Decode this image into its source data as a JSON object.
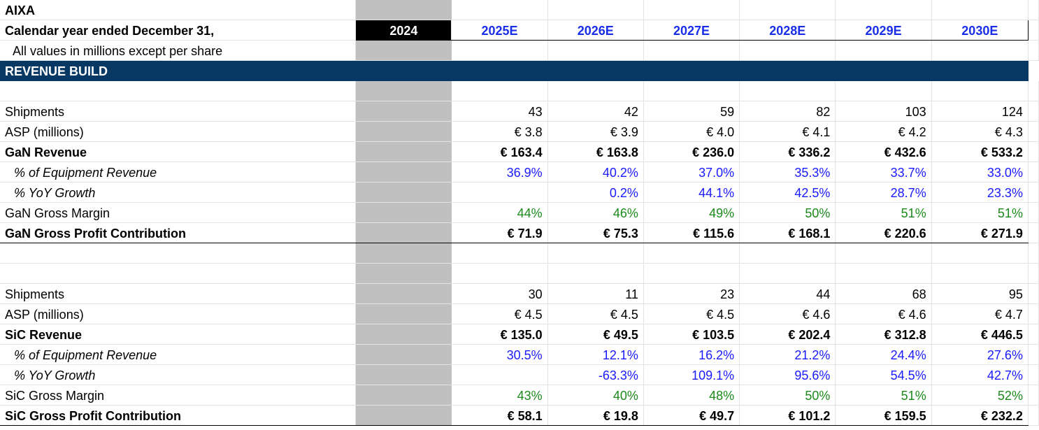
{
  "sheet": {
    "ticker": "AIXA",
    "period_label": "Calendar year ended December 31,",
    "units_note": "All values in millions except per share",
    "section_title": "REVENUE BUILD",
    "years": [
      "2024",
      "2025E",
      "2026E",
      "2027E",
      "2028E",
      "2029E",
      "2030E"
    ]
  },
  "gan": {
    "shipments": {
      "label": "Shipments",
      "values": [
        "",
        "43",
        "42",
        "59",
        "82",
        "103",
        "124"
      ]
    },
    "asp": {
      "label": "ASP (millions)",
      "values": [
        "",
        "€ 3.8",
        "€ 3.9",
        "€ 4.0",
        "€ 4.1",
        "€ 4.2",
        "€ 4.3"
      ]
    },
    "revenue": {
      "label": "GaN Revenue",
      "values": [
        "",
        "€ 163.4",
        "€ 163.8",
        "€ 236.0",
        "€ 336.2",
        "€ 432.6",
        "€ 533.2"
      ]
    },
    "pct_equipment": {
      "label": "% of Equipment Revenue",
      "values": [
        "",
        "36.9%",
        "40.2%",
        "37.0%",
        "35.3%",
        "33.7%",
        "33.0%"
      ]
    },
    "yoy": {
      "label": "% YoY Growth",
      "values": [
        "",
        "",
        "0.2%",
        "44.1%",
        "42.5%",
        "28.7%",
        "23.3%"
      ]
    },
    "gross_margin": {
      "label": "GaN Gross Margin",
      "values": [
        "",
        "44%",
        "46%",
        "49%",
        "50%",
        "51%",
        "51%"
      ]
    },
    "gross_profit": {
      "label": "GaN Gross Profit Contribution",
      "values": [
        "",
        "€ 71.9",
        "€ 75.3",
        "€ 115.6",
        "€ 168.1",
        "€ 220.6",
        "€ 271.9"
      ]
    }
  },
  "sic": {
    "shipments": {
      "label": "Shipments",
      "values": [
        "",
        "30",
        "11",
        "23",
        "44",
        "68",
        "95"
      ]
    },
    "asp": {
      "label": "ASP (millions)",
      "values": [
        "",
        "€ 4.5",
        "€ 4.5",
        "€ 4.5",
        "€ 4.6",
        "€ 4.6",
        "€ 4.7"
      ]
    },
    "revenue": {
      "label": "SiC Revenue",
      "values": [
        "",
        "€ 135.0",
        "€ 49.5",
        "€ 103.5",
        "€ 202.4",
        "€ 312.8",
        "€ 446.5"
      ]
    },
    "pct_equipment": {
      "label": "% of Equipment Revenue",
      "values": [
        "",
        "30.5%",
        "12.1%",
        "16.2%",
        "21.2%",
        "24.4%",
        "27.6%"
      ]
    },
    "yoy": {
      "label": "% YoY Growth",
      "values": [
        "",
        "",
        "-63.3%",
        "109.1%",
        "95.6%",
        "54.5%",
        "42.7%"
      ]
    },
    "gross_margin": {
      "label": "SiC Gross Margin",
      "values": [
        "",
        "43%",
        "40%",
        "48%",
        "50%",
        "51%",
        "52%"
      ]
    },
    "gross_profit": {
      "label": "SiC Gross Profit Contribution",
      "values": [
        "",
        "€ 58.1",
        "€ 19.8",
        "€ 49.7",
        "€ 101.2",
        "€ 159.5",
        "€ 232.2"
      ]
    }
  }
}
